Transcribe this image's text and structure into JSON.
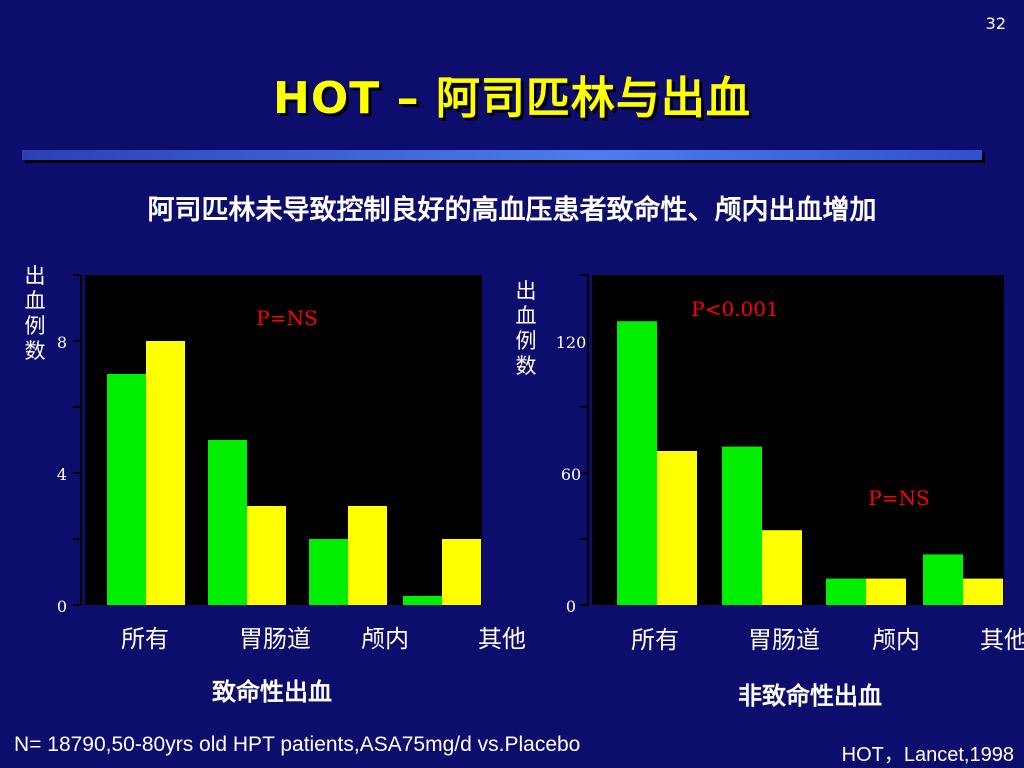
{
  "slide_number": "32",
  "title": "HOT – 阿司匹林与出血",
  "subtitle": "阿司匹林未导致控制良好的高血压患者致命性、颅内出血增加",
  "footnote": "N= 18790,50-80yrs old HPT patients,ASA75mg/d vs.Placebo",
  "citation": "HOT，Lancet,1998",
  "colors": {
    "background": "#0d0d6e",
    "title": "#ffff00",
    "series_green": "#00ee00",
    "series_yellow": "#ffff00",
    "pvalue": "#ff0000",
    "plot_bg": "#000000"
  },
  "chart_data": [
    {
      "type": "bar",
      "ylabel": "出血例数",
      "xlabel": "致命性出血",
      "categories": [
        "所有",
        "胃肠道",
        "颅内",
        "其他"
      ],
      "series": [
        {
          "values": [
            7,
            5,
            2,
            0
          ]
        },
        {
          "values": [
            8,
            3,
            3,
            2
          ]
        }
      ],
      "ylim": [
        0,
        10
      ],
      "yticks": [
        0,
        4,
        8
      ],
      "annotation": "P=NS",
      "grid": false
    },
    {
      "type": "bar",
      "ylabel": "出血例数",
      "xlabel": "非致命性出血",
      "categories": [
        "所有",
        "胃肠道",
        "颅内",
        "其他"
      ],
      "series": [
        {
          "values": [
            129,
            72,
            12,
            23
          ]
        },
        {
          "values": [
            70,
            34,
            12,
            12
          ]
        }
      ],
      "ylim": [
        0,
        150
      ],
      "yticks": [
        0,
        60,
        120
      ],
      "annotations": [
        "P<0.001",
        "P=NS"
      ],
      "grid": false
    }
  ]
}
